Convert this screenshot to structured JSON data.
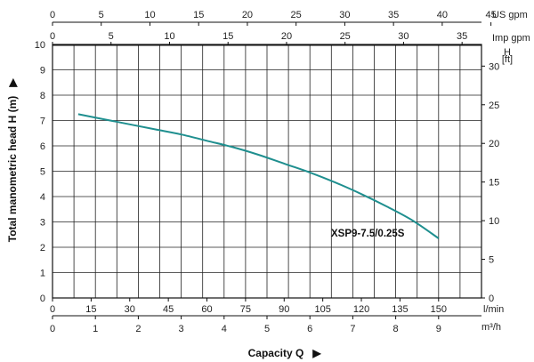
{
  "chart_data": {
    "type": "line",
    "series": [
      {
        "name": "XSP9-7.5/0.25S",
        "color": "#1f8f8f",
        "x": [
          10,
          20,
          30,
          40,
          50,
          60,
          70,
          80,
          90,
          100,
          110,
          120,
          130,
          140,
          150
        ],
        "y": [
          7.25,
          7.05,
          6.85,
          6.65,
          6.45,
          6.2,
          5.95,
          5.65,
          5.3,
          4.95,
          4.55,
          4.1,
          3.6,
          3.05,
          2.35
        ]
      }
    ],
    "axes": {
      "y_left": {
        "label": "Total manometric head H (m)",
        "arrow": "▶",
        "range": [
          0,
          10
        ],
        "ticks": [
          "0",
          "1",
          "2",
          "3",
          "4",
          "5",
          "6",
          "7",
          "8",
          "9",
          "10"
        ]
      },
      "y_right": {
        "unit_top": "H",
        "unit_bottom": "[ft]",
        "range": [
          0,
          32.8
        ],
        "ticks": [
          "0",
          "5",
          "10",
          "15",
          "20",
          "25",
          "30"
        ]
      },
      "x_top_us": {
        "unit": "US gpm",
        "range": [
          0,
          44.03
        ],
        "ticks": [
          "0",
          "5",
          "10",
          "15",
          "20",
          "25",
          "30",
          "35",
          "40",
          "45"
        ]
      },
      "x_top_imp": {
        "unit": "Imp gpm",
        "range": [
          0,
          36.66
        ],
        "ticks": [
          "0",
          "5",
          "10",
          "15",
          "20",
          "25",
          "30",
          "35"
        ]
      },
      "x_lmin": {
        "unit": "l/min",
        "range": [
          0,
          166.67
        ],
        "ticks": [
          "0",
          "15",
          "30",
          "45",
          "60",
          "75",
          "90",
          "105",
          "120",
          "135",
          "150"
        ]
      },
      "x_m3h": {
        "unit": "m³/h",
        "range": [
          0,
          10
        ],
        "ticks": [
          "0",
          "1",
          "2",
          "3",
          "4",
          "5",
          "6",
          "7",
          "8",
          "9"
        ]
      },
      "x_title": "Capacity Q",
      "x_title_arrow": "▶"
    },
    "grid": true
  }
}
